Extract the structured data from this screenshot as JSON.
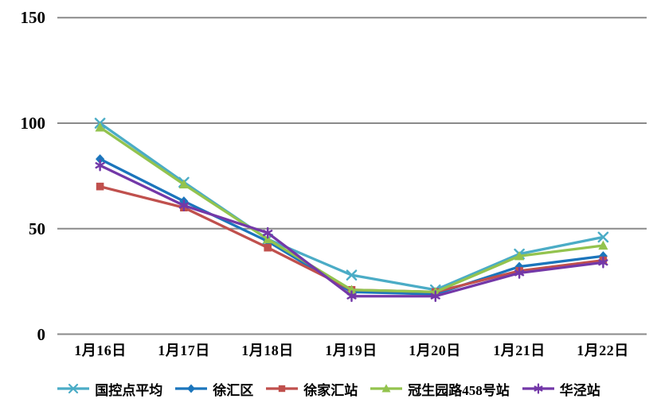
{
  "chart_data": {
    "type": "line",
    "title": "",
    "xlabel": "",
    "ylabel": "",
    "categories": [
      "1月16日",
      "1月17日",
      "1月18日",
      "1月19日",
      "1月20日",
      "1月21日",
      "1月22日"
    ],
    "y_tick_labels": [
      "150",
      "100",
      "50",
      "0"
    ],
    "y_ticks": [
      150,
      100,
      50,
      0
    ],
    "ylim": [
      0,
      150
    ],
    "grid": "horizontal-only",
    "legend_position": "bottom",
    "background": "#ffffff",
    "gridline_color": "#8a8a8a",
    "series": [
      {
        "name": "国控点平均",
        "color": "#4BACC6",
        "marker": "x",
        "values": [
          100,
          72,
          45,
          28,
          21,
          38,
          46
        ]
      },
      {
        "name": "徐汇区",
        "color": "#1B75BC",
        "marker": "diamond",
        "values": [
          83,
          63,
          44,
          20,
          19,
          32,
          37
        ]
      },
      {
        "name": "徐家汇站",
        "color": "#C0504D",
        "marker": "square",
        "values": [
          70,
          60,
          41,
          21,
          20,
          30,
          35
        ]
      },
      {
        "name": "冠生园路458号站",
        "color": "#93C34E",
        "marker": "triangle",
        "values": [
          98,
          71,
          45,
          21,
          20,
          37,
          42
        ]
      },
      {
        "name": "华泾站",
        "color": "#7338A8",
        "marker": "asterisk",
        "values": [
          80,
          61,
          48,
          18,
          18,
          29,
          34
        ]
      }
    ]
  }
}
